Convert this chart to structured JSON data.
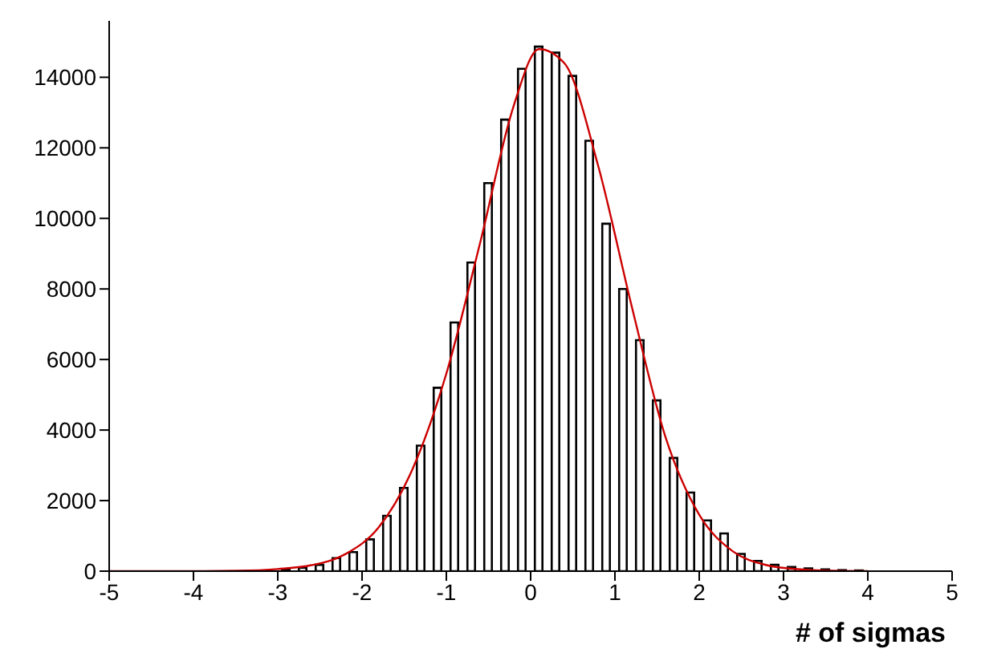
{
  "chart_data": {
    "type": "histogram",
    "xlabel": "# of sigmas",
    "bins": [
      -5,
      -4.8,
      -4.6,
      -4.4,
      -4.2,
      -4,
      -3.8,
      -3.6,
      -3.4,
      -3.2,
      -3,
      -2.8,
      -2.6,
      -2.4,
      -2.2,
      -2,
      -1.8,
      -1.6,
      -1.4,
      -1.2,
      -1,
      -0.8,
      -0.6,
      -0.4,
      -0.2,
      0,
      0.2,
      0.4,
      0.6,
      0.8,
      1,
      1.2,
      1.4,
      1.6,
      1.8,
      2,
      2.2,
      2.4,
      2.6,
      2.8,
      3,
      3.2,
      3.4,
      3.6,
      3.8,
      4,
      4.2,
      4.4,
      4.6,
      4.8,
      5
    ],
    "values": [
      0,
      0,
      0,
      0,
      0,
      0,
      0,
      0,
      0,
      0,
      50,
      100,
      180,
      370,
      540,
      900,
      1570,
      2360,
      3560,
      5200,
      7050,
      8750,
      11000,
      12800,
      14240,
      14870,
      14700,
      14040,
      12200,
      9850,
      8000,
      6550,
      4840,
      3210,
      2230,
      1440,
      1070,
      490,
      290,
      180,
      120,
      80,
      50,
      30,
      20,
      0,
      0,
      0,
      0,
      0
    ],
    "color": "#000000",
    "series": [
      {
        "type": "line",
        "color": "#cc0000",
        "x": [
          -5,
          -4,
          -3.5,
          -3,
          -2.6,
          -2.2,
          -1.8,
          -1.4,
          -1,
          -0.6,
          -0.2,
          0.1,
          0.4,
          0.8,
          1.2,
          1.6,
          2,
          2.4,
          2.8,
          3.2,
          3.6,
          4
        ],
        "values": [
          0,
          0,
          10,
          60,
          170,
          480,
          1250,
          2900,
          5600,
          9300,
          13200,
          14800,
          14400,
          11500,
          7500,
          3800,
          1600,
          560,
          170,
          50,
          10,
          0
        ]
      }
    ],
    "xlim": [
      -5,
      5
    ],
    "xticks": [
      -5,
      -4,
      -3,
      -2,
      -1,
      0,
      1,
      2,
      3,
      4,
      5
    ],
    "ylim": [
      0,
      15600
    ],
    "yticks": [
      0,
      2000,
      4000,
      6000,
      8000,
      10000,
      12000,
      14000
    ],
    "grid": false,
    "legend": false
  }
}
